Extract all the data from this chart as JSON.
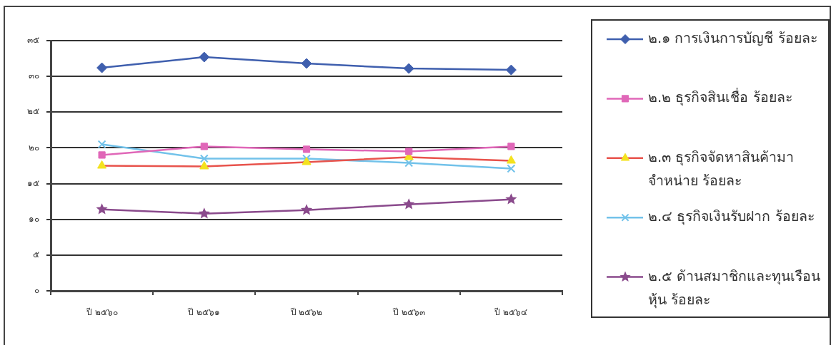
{
  "chart_data": {
    "type": "line",
    "categories": [
      "ปี ๒๕๖๐",
      "ปี ๒๕๖๑",
      "ปี ๒๕๖๒",
      "ปี ๒๕๖๓",
      "ปี ๒๕๖๔"
    ],
    "series": [
      {
        "name": "๒.๑ การเงินการบัญชี ร้อยละ",
        "color": "#3f5fae",
        "marker": "diamond",
        "values": [
          31.2,
          32.7,
          31.8,
          31.1,
          30.9
        ]
      },
      {
        "name": "๒.๒ ธุรกิจสินเชื่อ ร้อยละ",
        "color": "#e067b8",
        "marker": "square",
        "values": [
          19.0,
          20.2,
          19.8,
          19.5,
          20.2
        ]
      },
      {
        "name": "๒.๓ ธุรกิจจัดหาสินค้ามาจำหน่าย ร้อยละ",
        "color": "#e8534c",
        "colors": [
          "#f4e21e",
          "#f4e21e",
          "#f4e21e",
          "#f4e21e",
          "#f4e21e"
        ],
        "marker": "triangle",
        "values": [
          17.5,
          17.4,
          18.0,
          18.7,
          18.2
        ]
      },
      {
        "name": "๒.๔ ธุรกิจเงินรับฝาก ร้อยละ",
        "color": "#72c2ea",
        "marker": "cross",
        "values": [
          20.5,
          18.5,
          18.5,
          17.9,
          17.1
        ]
      },
      {
        "name": "๒.๕ ด้านสมาชิกและทุนเรือนหุ้น ร้อยละ",
        "color": "#8a4a8c",
        "marker": "star",
        "values": [
          11.4,
          10.8,
          11.3,
          12.1,
          12.8
        ]
      }
    ],
    "ylim": [
      0,
      35
    ],
    "yticks": [
      {
        "value": 0,
        "label": "๐"
      },
      {
        "value": 5,
        "label": "๕"
      },
      {
        "value": 10,
        "label": "๑๐"
      },
      {
        "value": 15,
        "label": "๑๕"
      },
      {
        "value": 20,
        "label": "๒๐"
      },
      {
        "value": 25,
        "label": "๒๕"
      },
      {
        "value": 30,
        "label": "๓๐"
      },
      {
        "value": 35,
        "label": "๓๕"
      }
    ],
    "grid": "y",
    "legend": "right",
    "line_style": "solid"
  }
}
